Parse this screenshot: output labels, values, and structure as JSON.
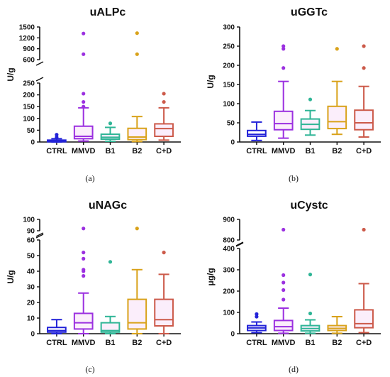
{
  "chart_data": [
    {
      "type": "box",
      "panel": "(a)",
      "title": "uALPc",
      "ylabel": "U/g",
      "categories": [
        "CTRL",
        "MMVD",
        "B1",
        "B2",
        "C+D"
      ],
      "colors": [
        "#2323d8",
        "#9b30e0",
        "#2fb596",
        "#d9a21a",
        "#cc5a4a"
      ],
      "fill_colors": [
        "#ffffff",
        "#fbeefb",
        "#fbeefb",
        "#fbeefb",
        "#fbeefb"
      ],
      "axis_break": {
        "lower_range": [
          0,
          250
        ],
        "upper_range": [
          600,
          1500
        ]
      },
      "yticks": [
        0,
        50,
        100,
        150,
        200,
        250,
        600,
        900,
        1200,
        1500
      ],
      "yticklabels": [
        "0",
        "50",
        "100",
        "150",
        "200",
        "250",
        "600",
        "900",
        "1200",
        "1500"
      ],
      "boxes": [
        {
          "whisker_low": 0,
          "q1": 1,
          "median": 4,
          "q3": 8,
          "whisker_high": 14,
          "outliers": [
            20,
            31
          ]
        },
        {
          "whisker_low": 4,
          "q1": 14,
          "median": 24,
          "q3": 67,
          "whisker_high": 145,
          "outliers": [
            150,
            170,
            205,
            750,
            1320
          ]
        },
        {
          "whisker_low": 3,
          "q1": 12,
          "median": 20,
          "q3": 33,
          "whisker_high": 62,
          "outliers": [
            79
          ]
        },
        {
          "whisker_low": 2,
          "q1": 10,
          "median": 21,
          "q3": 58,
          "whisker_high": 108,
          "outliers": [
            750,
            1330
          ]
        },
        {
          "whisker_low": 8,
          "q1": 24,
          "median": 57,
          "q3": 77,
          "whisker_high": 145,
          "outliers": [
            170,
            205
          ]
        }
      ]
    },
    {
      "type": "box",
      "panel": "(b)",
      "title": "uGGTc",
      "ylabel": "U/g",
      "categories": [
        "CTRL",
        "MMVD",
        "B1",
        "B2",
        "C+D"
      ],
      "colors": [
        "#2323d8",
        "#9b30e0",
        "#2fb596",
        "#d9a21a",
        "#cc5a4a"
      ],
      "fill_colors": [
        "#ffffff",
        "#fbeefb",
        "#fbeefb",
        "#fbeefb",
        "#fbeefb"
      ],
      "ylim": [
        0,
        300
      ],
      "yticks": [
        0,
        50,
        100,
        150,
        200,
        250,
        300
      ],
      "yticklabels": [
        "0",
        "50",
        "100",
        "150",
        "200",
        "250",
        "300"
      ],
      "boxes": [
        {
          "whisker_low": 4,
          "q1": 15,
          "median": 20,
          "q3": 30,
          "whisker_high": 52,
          "outliers": []
        },
        {
          "whisker_low": 10,
          "q1": 32,
          "median": 48,
          "q3": 80,
          "whisker_high": 158,
          "outliers": [
            193,
            243,
            250
          ]
        },
        {
          "whisker_low": 18,
          "q1": 33,
          "median": 46,
          "q3": 60,
          "whisker_high": 82,
          "outliers": [
            111
          ]
        },
        {
          "whisker_low": 20,
          "q1": 35,
          "median": 53,
          "q3": 93,
          "whisker_high": 158,
          "outliers": [
            243
          ]
        },
        {
          "whisker_low": 13,
          "q1": 32,
          "median": 50,
          "q3": 83,
          "whisker_high": 145,
          "outliers": [
            193,
            250
          ]
        }
      ]
    },
    {
      "type": "box",
      "panel": "(c)",
      "title": "uNAGc",
      "ylabel": "U/g",
      "categories": [
        "CTRL",
        "MMVD",
        "B1",
        "B2",
        "C+D"
      ],
      "colors": [
        "#2323d8",
        "#9b30e0",
        "#2fb596",
        "#d9a21a",
        "#cc5a4a"
      ],
      "fill_colors": [
        "#ffffff",
        "#fbeefb",
        "#fbeefb",
        "#fbeefb",
        "#fbeefb"
      ],
      "axis_break": {
        "lower_range": [
          0,
          60
        ],
        "upper_range": [
          90,
          100
        ]
      },
      "yticks": [
        0,
        10,
        20,
        30,
        40,
        50,
        60,
        90,
        100
      ],
      "yticklabels": [
        "0",
        "10",
        "20",
        "30",
        "40",
        "50",
        "60",
        "90",
        "100"
      ],
      "boxes": [
        {
          "whisker_low": 0,
          "q1": 1,
          "median": 2,
          "q3": 4,
          "whisker_high": 9,
          "outliers": []
        },
        {
          "whisker_low": 0,
          "q1": 3,
          "median": 7,
          "q3": 13,
          "whisker_high": 26,
          "outliers": [
            37,
            40,
            41,
            48,
            52,
            92
          ]
        },
        {
          "whisker_low": 0,
          "q1": 1,
          "median": 2,
          "q3": 7,
          "whisker_high": 11,
          "outliers": [
            46
          ]
        },
        {
          "whisker_low": 0,
          "q1": 3,
          "median": 7,
          "q3": 22,
          "whisker_high": 41,
          "outliers": [
            92
          ]
        },
        {
          "whisker_low": 0,
          "q1": 5,
          "median": 9,
          "q3": 22,
          "whisker_high": 38,
          "outliers": [
            52
          ]
        }
      ]
    },
    {
      "type": "box",
      "panel": "(d)",
      "title": "uCystc",
      "ylabel": "μg/g",
      "categories": [
        "CTRL",
        "MMVD",
        "B1",
        "B2",
        "C+D"
      ],
      "colors": [
        "#2323d8",
        "#9b30e0",
        "#2fb596",
        "#d9a21a",
        "#cc5a4a"
      ],
      "fill_colors": [
        "#ffffff",
        "#fbeefb",
        "#fbeefb",
        "#fbeefb",
        "#fbeefb"
      ],
      "axis_break": {
        "lower_range": [
          0,
          400
        ],
        "upper_range": [
          800,
          900
        ]
      },
      "yticks": [
        0,
        100,
        200,
        300,
        400,
        800,
        900
      ],
      "yticklabels": [
        "0",
        "100",
        "200",
        "300",
        "400",
        "800",
        "900"
      ],
      "boxes": [
        {
          "whisker_low": 5,
          "q1": 15,
          "median": 27,
          "q3": 38,
          "whisker_high": 55,
          "outliers": [
            80,
            92
          ]
        },
        {
          "whisker_low": 2,
          "q1": 15,
          "median": 33,
          "q3": 62,
          "whisker_high": 120,
          "outliers": [
            160,
            205,
            240,
            275,
            850
          ]
        },
        {
          "whisker_low": 2,
          "q1": 13,
          "median": 24,
          "q3": 38,
          "whisker_high": 65,
          "outliers": [
            95,
            278
          ]
        },
        {
          "whisker_low": 2,
          "q1": 15,
          "median": 25,
          "q3": 38,
          "whisker_high": 80,
          "outliers": []
        },
        {
          "whisker_low": 5,
          "q1": 28,
          "median": 47,
          "q3": 112,
          "whisker_high": 235,
          "outliers": [
            850
          ]
        }
      ]
    }
  ]
}
